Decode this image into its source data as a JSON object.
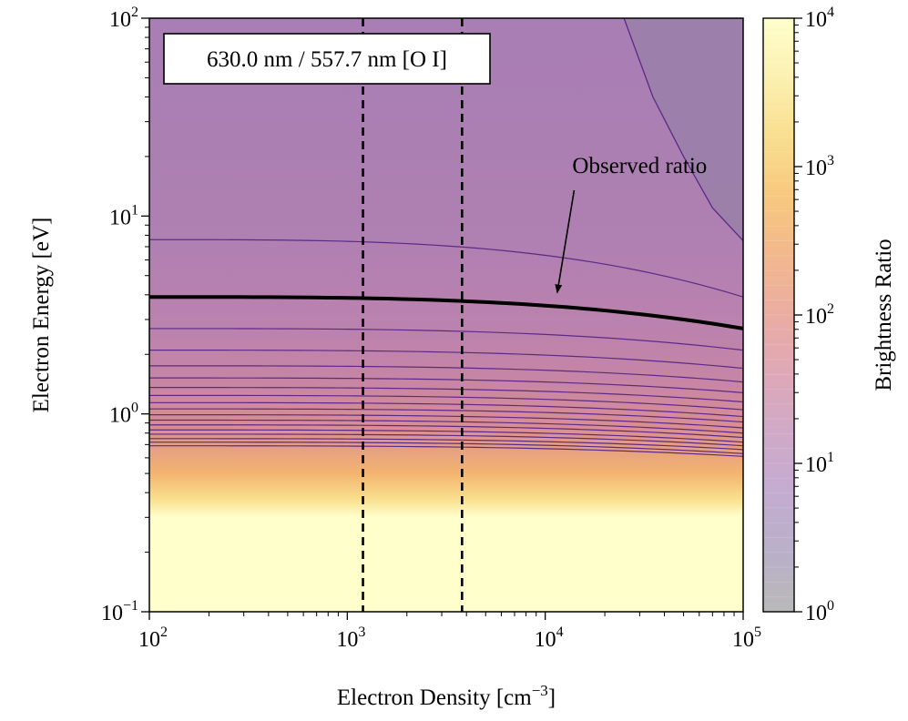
{
  "chart_data": {
    "type": "heatmap",
    "subtype": "filled-contour",
    "title": "",
    "annotation_box": {
      "numerator": "630.0 nm",
      "separator": "/",
      "denominator": "557.7 nm",
      "species": "[O I]"
    },
    "xlabel": {
      "text": "Electron Density [cm",
      "superscript": "−3",
      "suffix": "]"
    },
    "ylabel": "Electron Energy [eV]",
    "colorbar_label": "Brightness Ratio",
    "x_scale": "log",
    "y_scale": "log",
    "colorbar_scale": "log",
    "xlim": [
      100,
      100000
    ],
    "ylim": [
      0.1,
      100
    ],
    "clim": [
      1,
      10000
    ],
    "x_ticks": [
      {
        "value": 100,
        "base": "10",
        "exp": "2"
      },
      {
        "value": 1000,
        "base": "10",
        "exp": "3"
      },
      {
        "value": 10000,
        "base": "10",
        "exp": "4"
      },
      {
        "value": 100000,
        "base": "10",
        "exp": "5"
      }
    ],
    "y_ticks": [
      {
        "value": 0.1,
        "base": "10",
        "exp": "−1"
      },
      {
        "value": 1,
        "base": "10",
        "exp": "0"
      },
      {
        "value": 10,
        "base": "10",
        "exp": "1"
      },
      {
        "value": 100,
        "base": "10",
        "exp": "2"
      }
    ],
    "colorbar_ticks": [
      {
        "value": 1,
        "base": "10",
        "exp": "0"
      },
      {
        "value": 10,
        "base": "10",
        "exp": "1"
      },
      {
        "value": 100,
        "base": "10",
        "exp": "2"
      },
      {
        "value": 1000,
        "base": "10",
        "exp": "3"
      },
      {
        "value": 10000,
        "base": "10",
        "exp": "4"
      }
    ],
    "colormap": [
      "#7f7f7f",
      "#8a7aa4",
      "#a27db6",
      "#bb82ae",
      "#d2889c",
      "#e49587",
      "#f0a874",
      "#f5c06a",
      "#f8db84",
      "#fbf0ad",
      "#ffffcc"
    ],
    "colormap_alpha": 0.5,
    "field_levels": [
      {
        "ratio": 8,
        "energy_at_low_density": 100
      },
      {
        "ratio": 10,
        "energy_at_low_density": 7.6
      },
      {
        "ratio": 13.5,
        "energy_at_low_density": 3.9
      },
      {
        "ratio": 16,
        "energy_at_low_density": 2.7
      },
      {
        "ratio": 25,
        "energy_at_low_density": 1.5
      },
      {
        "ratio": 60,
        "energy_at_low_density": 0.85
      },
      {
        "ratio": 400,
        "energy_at_low_density": 0.5
      },
      {
        "ratio": 2000,
        "energy_at_low_density": 0.37
      },
      {
        "ratio": 10000,
        "energy_at_low_density": 0.3
      }
    ],
    "contours": [
      {
        "name": "contour-upper-right",
        "points": [
          [
            25000,
            100
          ],
          [
            35000,
            40
          ],
          [
            50000,
            20
          ],
          [
            70000,
            11
          ],
          [
            100000,
            7.5
          ]
        ]
      },
      {
        "name": "contour-ratio-10",
        "energy": 7.6,
        "energy_at_max_density": 3.9
      },
      {
        "name": "contour-observed",
        "energy": 3.9,
        "energy_at_max_density": 2.7,
        "highlight": true
      },
      {
        "name": "contour",
        "energy": 2.7,
        "energy_at_max_density": 2.1
      },
      {
        "name": "contour",
        "energy": 2.1,
        "energy_at_max_density": 1.7
      },
      {
        "name": "contour",
        "energy": 1.75,
        "energy_at_max_density": 1.45
      },
      {
        "name": "contour",
        "energy": 1.52,
        "energy_at_max_density": 1.28
      },
      {
        "name": "contour",
        "energy": 1.36,
        "energy_at_max_density": 1.15
      },
      {
        "name": "contour",
        "energy": 1.24,
        "energy_at_max_density": 1.05
      },
      {
        "name": "contour",
        "energy": 1.14,
        "energy_at_max_density": 0.97
      },
      {
        "name": "contour",
        "energy": 1.06,
        "energy_at_max_density": 0.91
      },
      {
        "name": "contour",
        "energy": 0.99,
        "energy_at_max_density": 0.85
      },
      {
        "name": "contour",
        "energy": 0.93,
        "energy_at_max_density": 0.8
      },
      {
        "name": "contour",
        "energy": 0.88,
        "energy_at_max_density": 0.76
      },
      {
        "name": "contour",
        "energy": 0.83,
        "energy_at_max_density": 0.72
      },
      {
        "name": "contour",
        "energy": 0.79,
        "energy_at_max_density": 0.69
      },
      {
        "name": "contour",
        "energy": 0.75,
        "energy_at_max_density": 0.66
      },
      {
        "name": "contour",
        "energy": 0.72,
        "energy_at_max_density": 0.63
      },
      {
        "name": "contour",
        "energy": 0.69,
        "energy_at_max_density": 0.61
      }
    ],
    "contour_color": "#5b2a86",
    "observed_contour_color": "#000000",
    "vertical_lines": [
      {
        "x": 1200,
        "style": "dashed"
      },
      {
        "x": 3800,
        "style": "dashed"
      }
    ],
    "arrow_annotation": {
      "text": "Observed ratio",
      "text_at": [
        30000,
        18
      ],
      "arrow_from": [
        14000,
        13.5
      ],
      "arrow_to": [
        11500,
        4.1
      ]
    }
  }
}
